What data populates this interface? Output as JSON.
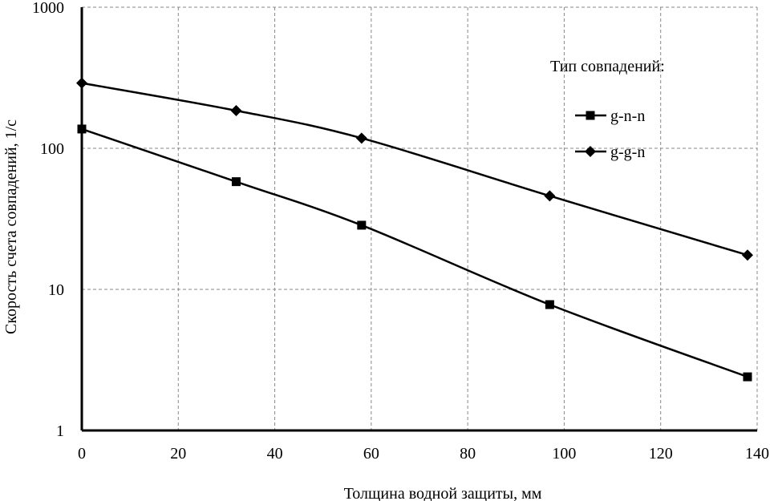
{
  "chart_data": {
    "type": "line",
    "xlabel": "Толщина  водной защиты, мм",
    "ylabel": "Скорость счета  совпадений, 1/с",
    "xlim": [
      0,
      140
    ],
    "ylim": [
      1,
      1000
    ],
    "yscale": "log",
    "grid": true,
    "x_ticks": [
      "0",
      "20",
      "40",
      "60",
      "80",
      "100",
      "120",
      "140"
    ],
    "y_ticks": [
      "1",
      "10",
      "100",
      "1000"
    ],
    "legend": {
      "title": "Тип совпадений:",
      "position": "right"
    },
    "series": [
      {
        "name": "g-n-n",
        "marker": "square",
        "x": [
          0,
          32,
          58,
          97,
          138
        ],
        "y": [
          137,
          58,
          28.5,
          7.8,
          2.4
        ]
      },
      {
        "name": "g-g-n",
        "marker": "diamond",
        "x": [
          0,
          32,
          58,
          97,
          138
        ],
        "y": [
          290,
          185,
          118,
          46,
          17.5
        ]
      }
    ]
  }
}
